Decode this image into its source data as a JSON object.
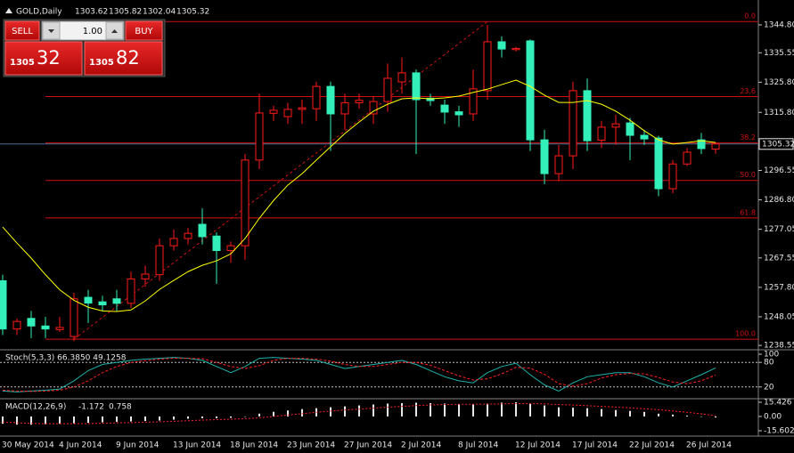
{
  "chart_data": [
    {
      "type": "candlestick",
      "title": "GOLD,Daily",
      "categories": [
        "30 May 2014",
        null,
        null,
        null,
        "4 Jun 2014",
        null,
        null,
        null,
        "9 Jun 2014",
        null,
        null,
        null,
        "13 Jun 2014",
        null,
        null,
        null,
        "18 Jun 2014",
        null,
        null,
        null,
        "23 Jun 2014",
        null,
        null,
        null,
        "27 Jun 2014",
        null,
        null,
        null,
        "2 Jul 2014",
        null,
        null,
        null,
        "8 Jul 2014",
        null,
        null,
        null,
        "12 Jul 2014",
        null,
        null,
        null,
        "17 Jul 2014",
        null,
        null,
        null,
        "22 Jul 2014",
        null,
        null,
        null,
        "26 Jul 2014",
        null,
        null
      ],
      "open": [
        1260,
        1244,
        1247.5,
        1245,
        1243.8,
        1241.5,
        1254.5,
        1253,
        1254,
        1252.5,
        1260.6,
        1262,
        1271.6,
        1274,
        1278.7,
        1274.8,
        1270,
        1271.6,
        1300,
        1315.5,
        1314.4,
        1316.8,
        1317,
        1324.4,
        1315.3,
        1319,
        1315.3,
        1319.4,
        1325.9,
        1328.9,
        1320.5,
        1318.2,
        1316,
        1315.3,
        1323,
        1339.2,
        1336.6,
        1339.5,
        1306.7,
        1295.5,
        1301.4,
        1323,
        1306.6,
        1310.9,
        1312.3,
        1308.2,
        1307.3,
        1290.5,
        1298.7,
        1306.7,
        1303.62
      ],
      "high": [
        1262,
        1247.5,
        1250,
        1248,
        1248,
        1256,
        1257,
        1255,
        1257,
        1263,
        1265,
        1274,
        1277,
        1277.5,
        1284,
        1276,
        1273,
        1302,
        1322,
        1318,
        1319,
        1320,
        1326,
        1326,
        1322,
        1322,
        1321,
        1332,
        1334,
        1330,
        1322,
        1320,
        1318,
        1330,
        1344.8,
        1341,
        1337.5,
        1340,
        1310,
        1305,
        1326,
        1327,
        1313,
        1315,
        1314,
        1310,
        1308,
        1300,
        1304,
        1309,
        1305.82
      ],
      "low": [
        1242,
        1242,
        1241,
        1241,
        1243,
        1240,
        1246,
        1250,
        1250,
        1251,
        1258,
        1260,
        1270,
        1272,
        1272,
        1259,
        1266,
        1267,
        1297,
        1313,
        1312,
        1312,
        1313,
        1303,
        1310,
        1317,
        1312,
        1316,
        1322,
        1302,
        1318,
        1312,
        1311,
        1313,
        1320,
        1334,
        1336,
        1303,
        1292,
        1293,
        1297,
        1303,
        1304,
        1305,
        1300,
        1305,
        1288,
        1289,
        1298,
        1302,
        1302.04
      ],
      "close": [
        1244,
        1246.5,
        1245,
        1244,
        1244.5,
        1254,
        1252.6,
        1252,
        1252.5,
        1260.6,
        1262.2,
        1271.6,
        1274,
        1275.7,
        1274.6,
        1270,
        1271.6,
        1300,
        1315.6,
        1316.5,
        1316.8,
        1317.3,
        1324.4,
        1315.3,
        1319,
        1319.8,
        1319.4,
        1327.1,
        1328.9,
        1320,
        1319.7,
        1315.9,
        1315,
        1323.6,
        1339.2,
        1336.8,
        1337,
        1306.7,
        1295.5,
        1301.4,
        1323,
        1306.4,
        1310.9,
        1312,
        1308.2,
        1307,
        1290.5,
        1298.7,
        1302.6,
        1303.8,
        1305.32
      ],
      "up_color": "#ff1a1a",
      "down_color": "#33f0bb",
      "ylim": [
        1238.0,
        1350.1
      ],
      "yticks": [
        {
          "value": 1344.8,
          "label": "1344.80"
        },
        1335.55,
        {
          "value": 1325.8,
          "label": "1325.80"
        },
        {
          "value": 1315.8,
          "label": "1315.80"
        },
        1296.55,
        {
          "value": 1286.8,
          "label": "1286.80"
        },
        1277.05,
        1267.55,
        {
          "value": 1257.8,
          "label": "1257.80"
        },
        1248.05,
        1238.55
      ],
      "current_price_color": "#4d7191",
      "moving_average": {
        "color": "#ffff00",
        "values": [
          1277.8,
          1272.5,
          1267.5,
          1262,
          1257,
          1253.5,
          1251.2,
          1250,
          1249.8,
          1250.3,
          1253.3,
          1257.1,
          1260.1,
          1263,
          1265.1,
          1266.6,
          1268.9,
          1274,
          1280.7,
          1286.6,
          1291.7,
          1295.5,
          1300,
          1304.4,
          1308.8,
          1312.6,
          1316.2,
          1318.5,
          1320.3,
          1320.6,
          1320.3,
          1320.6,
          1321.2,
          1322.4,
          1323.5,
          1325,
          1326.5,
          1324.4,
          1321.5,
          1319.1,
          1319.1,
          1319.7,
          1318.5,
          1316.2,
          1313.2,
          1309.7,
          1306.7,
          1305.3,
          1305.8,
          1306.4,
          1305.8
        ]
      },
      "fibonacci": {
        "color": "#d01010",
        "high": 1345.9,
        "low": 1240.6,
        "start_index": 5,
        "end_index": 34,
        "levels": [
          {
            "value": 0,
            "label": "0.0"
          },
          23.6,
          38.2,
          {
            "value": 50,
            "label": "50.0"
          },
          61.8,
          {
            "value": 100,
            "label": "100.0"
          }
        ]
      }
    },
    {
      "type": "line",
      "title": "Stoch(5,3,3) 66.3850 49.1258",
      "ylim": [
        0,
        100
      ],
      "yticks": [
        100,
        80,
        20
      ],
      "levels": [
        80,
        20
      ],
      "series": [
        {
          "color": "#20b2aa",
          "dashed": false,
          "values": [
            10,
            8,
            10,
            12,
            15,
            35,
            60,
            75,
            80,
            85,
            88,
            90,
            92,
            90,
            85,
            70,
            55,
            70,
            90,
            92,
            90,
            88,
            85,
            75,
            65,
            70,
            75,
            80,
            85,
            75,
            60,
            45,
            35,
            30,
            55,
            70,
            78,
            50,
            25,
            10,
            30,
            45,
            50,
            55,
            55,
            45,
            30,
            20,
            35,
            50,
            66.385
          ]
        },
        {
          "color": "#ff2020",
          "dashed": true,
          "values": [
            12,
            10,
            9,
            10,
            12,
            20,
            35,
            55,
            70,
            80,
            84,
            88,
            90,
            90,
            89,
            80,
            70,
            65,
            72,
            85,
            90,
            90,
            88,
            83,
            75,
            70,
            70,
            75,
            80,
            80,
            73,
            60,
            47,
            37,
            40,
            52,
            68,
            66,
            51,
            28,
            22,
            28,
            42,
            50,
            53,
            52,
            43,
            32,
            28,
            35,
            49.1258
          ]
        }
      ]
    },
    {
      "type": "bar",
      "title": "MACD(12,26,9)",
      "ylim": [
        -15.602,
        15.426
      ],
      "yticks": [
        15.426,
        {
          "value": 0,
          "label": "0.00"
        },
        -15.602
      ],
      "color": "#e8e8e8",
      "values": [
        -8,
        -9,
        -9,
        -8.5,
        -8,
        -7.5,
        -7,
        -6.5,
        -6,
        -5.5,
        -5,
        -4.5,
        -3.5,
        -2.5,
        -2,
        -2,
        -1.5,
        0,
        3,
        5,
        6.5,
        8,
        9,
        10,
        11,
        12,
        13,
        14,
        14.5,
        15,
        14.5,
        14,
        13.5,
        13.5,
        14,
        15,
        15.4,
        14,
        12,
        10,
        9.5,
        9,
        8,
        7,
        6,
        5,
        3,
        2,
        1,
        0,
        -1.172
      ],
      "signal": {
        "color": "#ff2020",
        "values": [
          -6,
          -7,
          -7.5,
          -8,
          -8,
          -8,
          -7.8,
          -7.5,
          -7,
          -6.7,
          -6.3,
          -5.8,
          -5.3,
          -4.7,
          -4,
          -3.5,
          -3,
          -2.5,
          -1.5,
          0,
          1.5,
          3,
          4.5,
          5.8,
          7,
          8,
          9,
          10,
          11,
          11.8,
          12.5,
          13,
          13.2,
          13.3,
          13.4,
          13.6,
          14,
          14,
          13.7,
          13,
          12.4,
          11.7,
          11,
          10.2,
          9.3,
          8.4,
          7.3,
          6,
          4.5,
          2.8,
          0.758
        ]
      }
    }
  ],
  "trade_panel": {
    "sell": "SELL",
    "buy": "BUY",
    "lots": "1.00",
    "bid_big": "1305",
    "bid_small": "32",
    "ask_big": "1305",
    "ask_small": "82"
  }
}
